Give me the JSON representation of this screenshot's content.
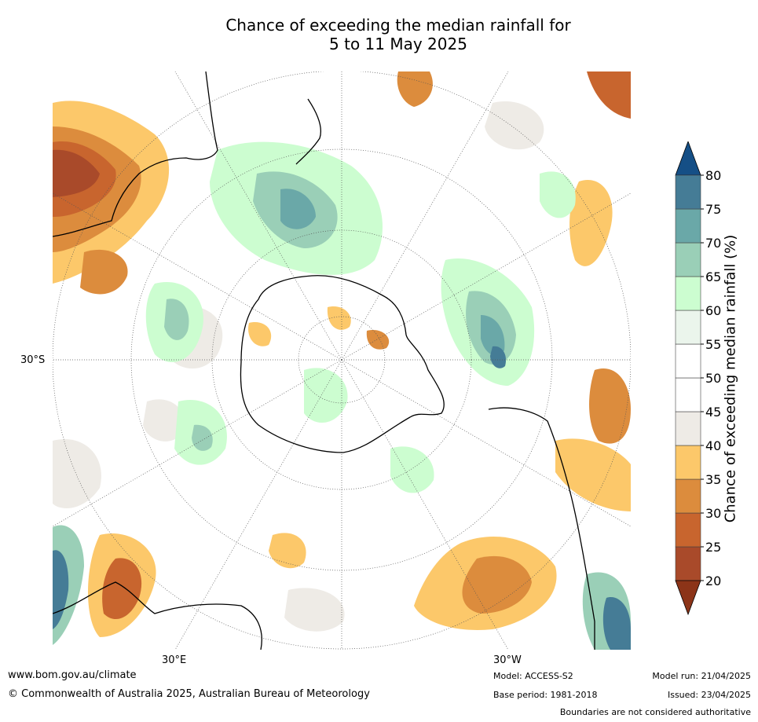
{
  "title_line1": "Chance of exceeding the median rainfall for",
  "title_line2": "5 to 11 May 2025",
  "map_labels": {
    "lat_30s": "30°S",
    "lon_30e": "30°E",
    "lon_30w": "30°W"
  },
  "colorbar": {
    "label": "Chance of exceeding median rainfall (%)",
    "ticks": [
      "20",
      "25",
      "30",
      "35",
      "40",
      "45",
      "50",
      "55",
      "60",
      "65",
      "70",
      "75",
      "80"
    ],
    "colors": [
      "#a94a2a",
      "#c8652e",
      "#dc8c3d",
      "#fcc86a",
      "#eeebe6",
      "#ffffff",
      "#ffffff",
      "#ebf5ec",
      "#ccfdd0",
      "#9acfb7",
      "#6aa8a8",
      "#457c96"
    ],
    "under_color": "#8c3418",
    "over_color": "#154f86"
  },
  "footer": {
    "website": "www.bom.gov.au/climate",
    "copyright": "© Commonwealth of Australia 2025, Australian Bureau of Meteorology",
    "model": "Model: ACCESS-S2",
    "base_period": "Base period: 1981-2018",
    "model_run": "Model run: 21/04/2025",
    "issued": "Issued: 23/04/2025",
    "disclaimer": "Boundaries are not considered authoritative"
  }
}
